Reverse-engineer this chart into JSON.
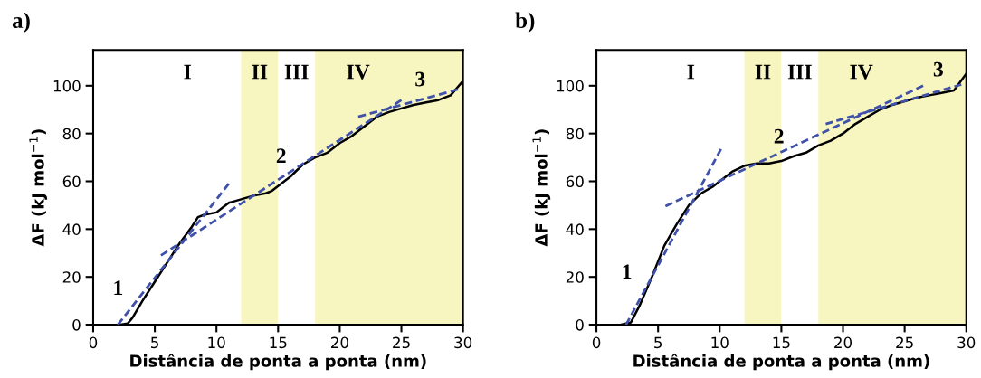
{
  "chart_data": [
    {
      "type": "line",
      "title": "a)",
      "xlabel": "Distância de ponta a ponta (nm)",
      "ylabel": "ΔF (kJ mol$^{−1}$)",
      "xlim": [
        0,
        30
      ],
      "ylim": [
        0,
        115
      ],
      "xticks": [
        0,
        5,
        10,
        15,
        20,
        25,
        30
      ],
      "yticks": [
        0,
        20,
        40,
        60,
        80,
        100
      ],
      "grid": false,
      "legend": false,
      "series": [
        {
          "color": "#000000",
          "line_style": "solid",
          "x": [
            2.2,
            2.8,
            3.2,
            4,
            5,
            6,
            7,
            8,
            8.5,
            9,
            10,
            10.5,
            11,
            12,
            13,
            14,
            14.5,
            15,
            16,
            17,
            18,
            19,
            20,
            21,
            22,
            23,
            24,
            25,
            26,
            27,
            28,
            29,
            30
          ],
          "values": [
            0,
            0.5,
            3,
            10,
            18,
            26,
            34,
            41,
            45,
            46,
            47,
            49,
            51,
            52.5,
            54,
            55,
            56,
            58,
            62,
            67,
            70,
            72,
            76,
            79,
            83,
            87,
            89,
            90.5,
            92,
            93,
            94,
            96,
            102
          ]
        },
        {
          "name": "1",
          "color": "#3f51a8",
          "line_style": "dashed",
          "x": [
            2,
            11
          ],
          "values": [
            0,
            59
          ]
        },
        {
          "name": "2",
          "color": "#3f51a8",
          "line_style": "dashed",
          "x": [
            5.5,
            25
          ],
          "values": [
            29,
            94
          ]
        },
        {
          "name": "3",
          "color": "#3f51a8",
          "line_style": "dashed",
          "x": [
            21.5,
            29.6
          ],
          "values": [
            87,
            98.5
          ]
        }
      ],
      "annotations": [
        "I"
      ],
      "bands": [
        {
          "axis": "x",
          "from": 12,
          "to": 15,
          "label": "II",
          "color": "#f8f6c0"
        },
        {
          "axis": "x",
          "from": 15,
          "to": 18,
          "label": "III",
          "color": "#ffffff"
        },
        {
          "axis": "x",
          "from": 18,
          "to": 30,
          "label": "IV",
          "color": "#f8f6c0"
        }
      ]
    },
    {
      "type": "line",
      "title": "b)",
      "xlabel": "Distância de ponta a ponta (nm)",
      "ylabel": "ΔF (kJ mol$^{−1}$)",
      "xlim": [
        0,
        30
      ],
      "ylim": [
        0,
        115
      ],
      "xticks": [
        0,
        5,
        10,
        15,
        20,
        25,
        30
      ],
      "yticks": [
        0,
        20,
        40,
        60,
        80,
        100
      ],
      "grid": false,
      "legend": false,
      "series": [
        {
          "color": "#000000",
          "line_style": "solid",
          "x": [
            2,
            2.8,
            3.5,
            4.5,
            5.5,
            6.5,
            7.5,
            8.5,
            9.5,
            10.5,
            11,
            12,
            13,
            14,
            15,
            16,
            17,
            18,
            19,
            20,
            21,
            22,
            23,
            24,
            25,
            26,
            27,
            28,
            29,
            30
          ],
          "values": [
            0,
            1,
            8,
            20,
            33,
            42,
            50,
            55,
            58,
            62,
            64,
            66.5,
            67.5,
            67.5,
            68.5,
            70.5,
            72,
            75,
            77,
            80,
            84,
            87,
            90,
            92,
            93.5,
            95,
            96,
            97,
            98,
            105
          ]
        },
        {
          "name": "1",
          "color": "#3f51a8",
          "line_style": "dashed",
          "x": [
            2.4,
            10.1
          ],
          "values": [
            0,
            73.5
          ]
        },
        {
          "name": "2",
          "color": "#3f51a8",
          "line_style": "dashed",
          "x": [
            5.6,
            26.5
          ],
          "values": [
            49.6,
            100
          ]
        },
        {
          "name": "3",
          "color": "#3f51a8",
          "line_style": "dashed",
          "x": [
            18.6,
            29.6
          ],
          "values": [
            84,
            100.5
          ]
        }
      ],
      "annotations": [
        "I"
      ],
      "bands": [
        {
          "axis": "x",
          "from": 12,
          "to": 15,
          "label": "II",
          "color": "#f8f6c0"
        },
        {
          "axis": "x",
          "from": 15,
          "to": 18,
          "label": "III",
          "color": "#ffffff"
        },
        {
          "axis": "x",
          "from": 18,
          "to": 30,
          "label": "IV",
          "color": "#f8f6c0"
        }
      ]
    }
  ]
}
